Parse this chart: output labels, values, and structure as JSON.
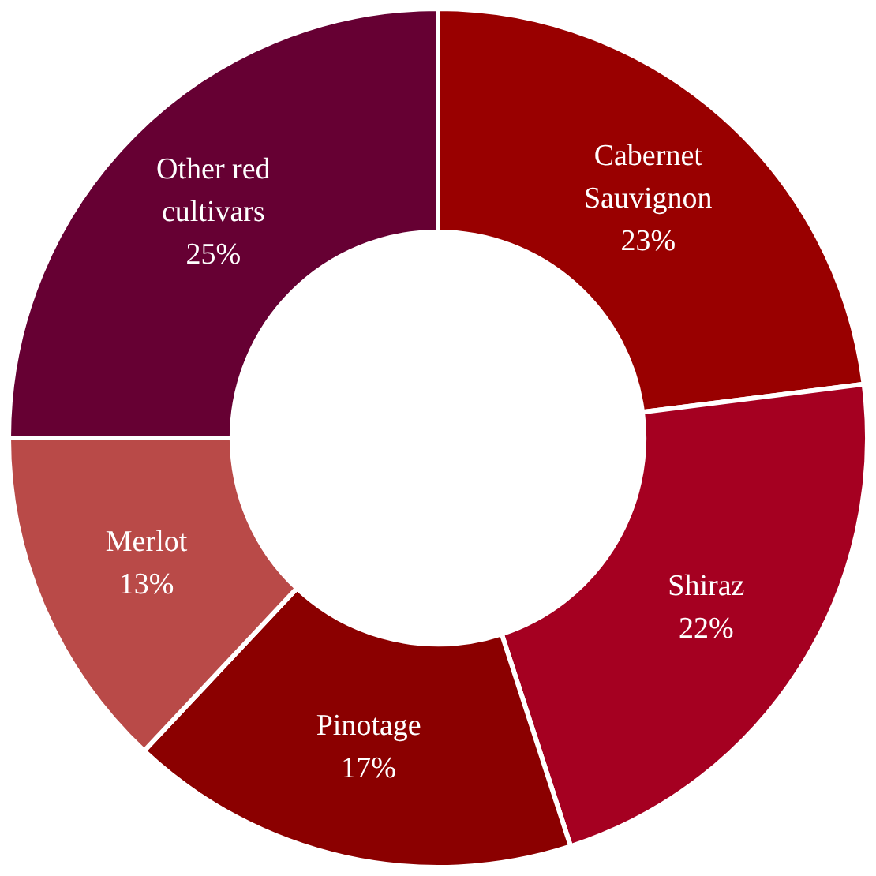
{
  "chart_data": {
    "type": "donut",
    "categories": [
      "Cabernet Sauvignon",
      "Shiraz",
      "Pinotage",
      "Merlot",
      "Other red cultivars"
    ],
    "values": [
      23,
      22,
      17,
      13,
      25
    ],
    "value_labels": [
      "23%",
      "22%",
      "17%",
      "13%",
      "25%"
    ],
    "colors": [
      "#990000",
      "#a50021",
      "#8b0000",
      "#b94a48",
      "#660033"
    ],
    "legend": false
  }
}
